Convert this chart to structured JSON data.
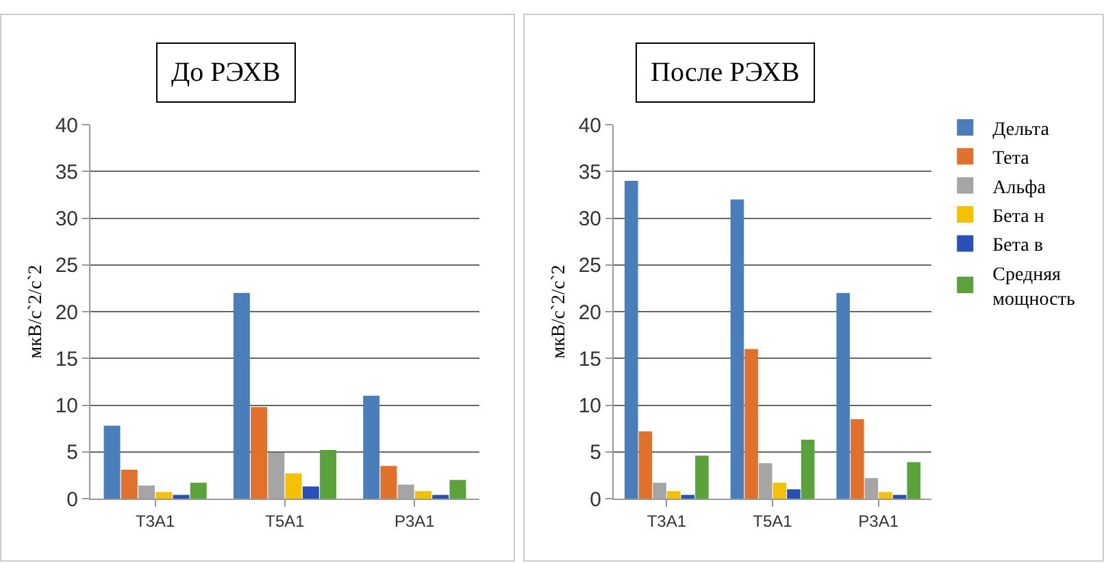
{
  "chart_data": [
    {
      "type": "bar",
      "title": "До РЭХВ",
      "ylabel": "мкВ/с`2/с`2",
      "categories": [
        "T3A1",
        "T5A1",
        "P3A1"
      ],
      "ylim": [
        0,
        40
      ],
      "yticks": [
        0,
        5,
        10,
        15,
        20,
        25,
        30,
        35,
        40
      ],
      "grid": "y",
      "legend": false,
      "series": [
        {
          "color": "#4a7ebb",
          "values": [
            7.8,
            22,
            11
          ]
        },
        {
          "color": "#e0702a",
          "values": [
            3.1,
            9.8,
            3.5
          ]
        },
        {
          "color": "#a5a5a5",
          "values": [
            1.4,
            4.9,
            1.5
          ]
        },
        {
          "color": "#f5c000",
          "values": [
            0.7,
            2.7,
            0.8
          ]
        },
        {
          "color": "#2850b8",
          "values": [
            0.4,
            1.3,
            0.4
          ]
        },
        {
          "color": "#5aa33a",
          "values": [
            1.7,
            5.2,
            2.0
          ]
        }
      ]
    },
    {
      "type": "bar",
      "title": "После РЭХВ",
      "ylabel": "мкВ/с`2/с`2",
      "categories": [
        "T3A1",
        "T5A1",
        "P3A1"
      ],
      "ylim": [
        0,
        40
      ],
      "yticks": [
        0,
        5,
        10,
        15,
        20,
        25,
        30,
        35,
        40
      ],
      "grid": "y",
      "legend": "right",
      "series": [
        {
          "name": "Дельта",
          "color": "#4a7ebb",
          "values": [
            34,
            32,
            22
          ]
        },
        {
          "name": "Тета",
          "color": "#e0702a",
          "values": [
            7.2,
            16,
            8.5
          ]
        },
        {
          "name": "Альфа",
          "color": "#a5a5a5",
          "values": [
            1.7,
            3.8,
            2.2
          ]
        },
        {
          "name": "Бета н",
          "color": "#f5c000",
          "values": [
            0.8,
            1.7,
            0.7
          ]
        },
        {
          "name": "Бета в",
          "color": "#2850b8",
          "values": [
            0.4,
            1.0,
            0.4
          ]
        },
        {
          "name": "Средняя мощность",
          "color": "#5aa33a",
          "values": [
            4.6,
            6.3,
            3.9
          ]
        }
      ]
    }
  ]
}
